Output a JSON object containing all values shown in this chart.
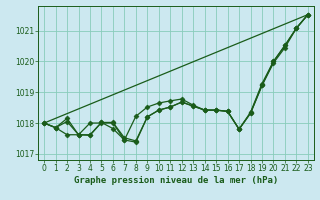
{
  "xlabel": "Graphe pression niveau de la mer (hPa)",
  "background_color": "#cce8f0",
  "grid_color": "#88ccbb",
  "line_color": "#1a5c1a",
  "xlim": [
    -0.5,
    23.5
  ],
  "ylim": [
    1016.8,
    1021.8
  ],
  "yticks": [
    1017,
    1018,
    1019,
    1020,
    1021
  ],
  "xticks": [
    0,
    1,
    2,
    3,
    4,
    5,
    6,
    7,
    8,
    9,
    10,
    11,
    12,
    13,
    14,
    15,
    16,
    17,
    18,
    19,
    20,
    21,
    22,
    23
  ],
  "series": {
    "line1_x": [
      0,
      1,
      2,
      3,
      4,
      5,
      6,
      7,
      8,
      9,
      10,
      11,
      12,
      13,
      14,
      15,
      16,
      17,
      18,
      19,
      20,
      21,
      22,
      23
    ],
    "line1_y": [
      1018.0,
      1017.85,
      1018.05,
      1017.62,
      1017.62,
      1018.02,
      1018.02,
      1017.52,
      1017.42,
      1018.2,
      1018.42,
      1018.52,
      1018.68,
      1018.55,
      1018.42,
      1018.42,
      1018.38,
      1017.8,
      1018.32,
      1019.22,
      1020.0,
      1020.52,
      1021.08,
      1021.52
    ],
    "line2_x": [
      0,
      1,
      2,
      3,
      4,
      5,
      6,
      7,
      8,
      9,
      10,
      11,
      12,
      13,
      14,
      15,
      16,
      17,
      18,
      19,
      20,
      21,
      22,
      23
    ],
    "line2_y": [
      1018.0,
      1017.85,
      1018.15,
      1017.62,
      1017.6,
      1018.02,
      1017.82,
      1017.45,
      1018.22,
      1018.52,
      1018.65,
      1018.72,
      1018.78,
      1018.58,
      1018.42,
      1018.42,
      1018.38,
      1017.8,
      1018.35,
      1019.28,
      1020.0,
      1020.52,
      1021.08,
      1021.52
    ],
    "line3_x": [
      0,
      1,
      2,
      3,
      4,
      5,
      6,
      7,
      8,
      9,
      10,
      11,
      12,
      13,
      14,
      15,
      16,
      17,
      18,
      19,
      20,
      21,
      22,
      23
    ],
    "line3_y": [
      1018.0,
      1017.85,
      1017.62,
      1017.62,
      1018.0,
      1018.0,
      1018.0,
      1017.45,
      1017.38,
      1018.2,
      1018.42,
      1018.52,
      1018.68,
      1018.55,
      1018.42,
      1018.42,
      1018.38,
      1017.8,
      1018.32,
      1019.22,
      1019.95,
      1020.45,
      1021.08,
      1021.52
    ],
    "line4_x": [
      0,
      23
    ],
    "line4_y": [
      1018.0,
      1021.52
    ]
  },
  "marker_style": "D",
  "marker_size": 2.5,
  "line_width": 0.9,
  "xlabel_fontsize": 6.5,
  "tick_fontsize": 5.5
}
